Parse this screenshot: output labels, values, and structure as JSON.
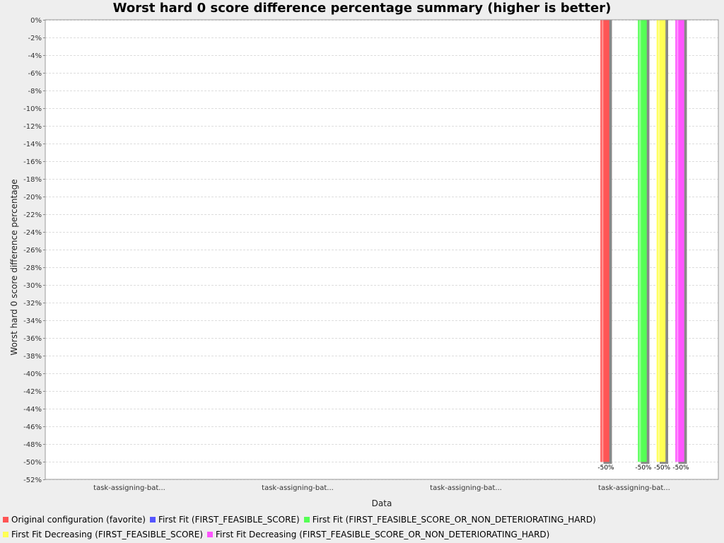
{
  "chart_data": {
    "type": "bar",
    "title": "Worst hard 0 score difference percentage summary (higher is better)",
    "xlabel": "Data",
    "ylabel": "Worst hard 0 score difference percentage",
    "categories": [
      "task-assigning-bat...",
      "task-assigning-bat...",
      "task-assigning-bat...",
      "task-assigning-bat..."
    ],
    "ylim": [
      -52,
      0
    ],
    "ytick_step": 2,
    "yticks_suffix": "%",
    "grid": true,
    "legend_placement": "bottom",
    "series": [
      {
        "name": "Original configuration (favorite)",
        "color": "#ff5555",
        "values": [
          null,
          null,
          null,
          -50
        ],
        "labels": [
          null,
          null,
          null,
          "-50%"
        ]
      },
      {
        "name": "First Fit (FIRST_FEASIBLE_SCORE)",
        "color": "#5555ff",
        "values": [
          null,
          null,
          null,
          null
        ],
        "labels": [
          null,
          null,
          null,
          null
        ]
      },
      {
        "name": "First Fit (FIRST_FEASIBLE_SCORE_OR_NON_DETERIORATING_HARD)",
        "color": "#55ff55",
        "values": [
          null,
          null,
          null,
          -50
        ],
        "labels": [
          null,
          null,
          null,
          "-50%"
        ]
      },
      {
        "name": "First Fit Decreasing (FIRST_FEASIBLE_SCORE)",
        "color": "#ffff55",
        "values": [
          null,
          null,
          null,
          -50
        ],
        "labels": [
          null,
          null,
          null,
          "-50%"
        ]
      },
      {
        "name": "First Fit Decreasing (FIRST_FEASIBLE_SCORE_OR_NON_DETERIORATING_HARD)",
        "color": "#ff55ff",
        "values": [
          null,
          null,
          null,
          -50
        ],
        "labels": [
          null,
          null,
          null,
          "-50%"
        ]
      }
    ],
    "legend_rows": [
      [
        0,
        1,
        2
      ],
      [
        3,
        4
      ]
    ]
  }
}
